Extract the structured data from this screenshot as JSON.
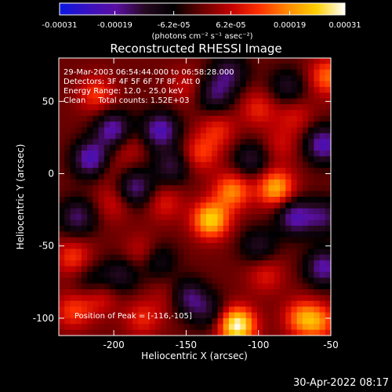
{
  "chart_data": {
    "type": "heatmap",
    "title": "Reconstructed RHESSI Image",
    "xlabel": "Heliocentric X (arcsec)",
    "ylabel": "Heliocentric Y (arcsec)",
    "xlim": [
      -238,
      -50
    ],
    "ylim": [
      -112,
      80
    ],
    "x_ticks": [
      -200,
      -150,
      -100,
      -50
    ],
    "x_tick_labels": [
      "-200",
      "-150",
      "-100",
      "-50"
    ],
    "y_ticks": [
      -100,
      -50,
      0,
      50
    ],
    "y_tick_labels": [
      "-100",
      "-50",
      "0",
      "50"
    ],
    "colorbar": {
      "range": [
        -0.00031,
        0.00031
      ],
      "ticks": [
        -0.00031,
        -0.00019,
        -6.2e-05,
        6.2e-05,
        0.00019,
        0.00031
      ],
      "tick_labels": [
        "-0.00031",
        "-0.00019",
        "-6.2e-05",
        "6.2e-05",
        "0.00019",
        "0.00031"
      ],
      "unit": "(photons cm⁻² s⁻¹ asec⁻²)",
      "colors": [
        "#0a18e0",
        "#3a10c0",
        "#5a0fa0",
        "#250820",
        "#000000",
        "#6a0000",
        "#c00000",
        "#ff3000",
        "#ff8a00",
        "#ffd000",
        "#ffffff"
      ]
    },
    "annotations": [
      "29-Mar-2003 06:54:44.000 to 06:58:28.000",
      "Detectors: 3F 4F 5F 6F 7F 8F, Att 0",
      "Energy Range: 12.0 - 25.0 keV",
      "Clean     Total counts: 1.52E+03"
    ],
    "peak_label": "Position of Peak = [-116,-105]",
    "peak": [
      -116,
      -105
    ],
    "hot_spots": [
      {
        "x": -115,
        "y": -105,
        "value": 0.00031
      },
      {
        "x": -133,
        "y": -32,
        "value": 0.00025
      },
      {
        "x": -88,
        "y": -10,
        "value": 0.00022
      },
      {
        "x": -118,
        "y": -12,
        "value": 0.00018
      },
      {
        "x": -52,
        "y": 67,
        "value": 0.00016
      },
      {
        "x": -140,
        "y": 14,
        "value": 0.00012
      },
      {
        "x": -70,
        "y": -100,
        "value": 0.00016
      },
      {
        "x": -58,
        "y": -103,
        "value": 0.00014
      },
      {
        "x": -228,
        "y": -58,
        "value": 0.00012
      },
      {
        "x": -228,
        "y": -95,
        "value": 0.00012
      },
      {
        "x": -210,
        "y": -85,
        "value": 0.0001
      },
      {
        "x": -212,
        "y": 55,
        "value": 0.00012
      },
      {
        "x": -180,
        "y": -55,
        "value": 9e-05
      },
      {
        "x": -100,
        "y": 45,
        "value": 0.0001
      },
      {
        "x": -190,
        "y": 20,
        "value": 8e-05
      },
      {
        "x": -160,
        "y": -85,
        "value": 8e-05
      },
      {
        "x": -150,
        "y": 60,
        "value": 7e-05
      },
      {
        "x": -75,
        "y": 40,
        "value": 8e-05
      },
      {
        "x": -95,
        "y": -70,
        "value": 9e-05
      },
      {
        "x": -205,
        "y": 5,
        "value": 7e-05
      },
      {
        "x": -85,
        "y": 20,
        "value": 7e-05
      },
      {
        "x": -200,
        "y": -20,
        "value": 8e-05
      },
      {
        "x": -180,
        "y": -100,
        "value": 0.0001
      },
      {
        "x": -128,
        "y": 30,
        "value": 0.0001
      },
      {
        "x": -165,
        "y": -20,
        "value": 9e-05
      }
    ],
    "cold_spots": [
      {
        "x": -215,
        "y": 10,
        "value": -0.00025
      },
      {
        "x": -200,
        "y": 30,
        "value": -0.00022
      },
      {
        "x": -185,
        "y": -10,
        "value": -0.00018
      },
      {
        "x": -168,
        "y": 30,
        "value": -0.00022
      },
      {
        "x": -150,
        "y": -85,
        "value": -0.00018
      },
      {
        "x": -135,
        "y": -95,
        "value": -0.00012
      },
      {
        "x": -55,
        "y": -65,
        "value": -0.0002
      },
      {
        "x": -75,
        "y": -30,
        "value": -0.0002
      },
      {
        "x": -100,
        "y": -50,
        "value": -0.00012
      },
      {
        "x": -55,
        "y": 20,
        "value": -0.00022
      },
      {
        "x": -55,
        "y": -30,
        "value": -0.00015
      },
      {
        "x": -120,
        "y": 70,
        "value": -0.00014
      },
      {
        "x": -130,
        "y": 55,
        "value": -0.00015
      },
      {
        "x": -225,
        "y": -30,
        "value": -0.00016
      },
      {
        "x": -160,
        "y": 5,
        "value": -0.00014
      },
      {
        "x": -105,
        "y": 10,
        "value": -0.00013
      },
      {
        "x": -170,
        "y": -60,
        "value": -0.00012
      },
      {
        "x": -80,
        "y": 60,
        "value": -0.00012
      },
      {
        "x": -215,
        "y": -75,
        "value": -0.0001
      },
      {
        "x": -195,
        "y": -70,
        "value": -0.00012
      }
    ]
  },
  "timestamp": "30-Apr-2022 08:17"
}
